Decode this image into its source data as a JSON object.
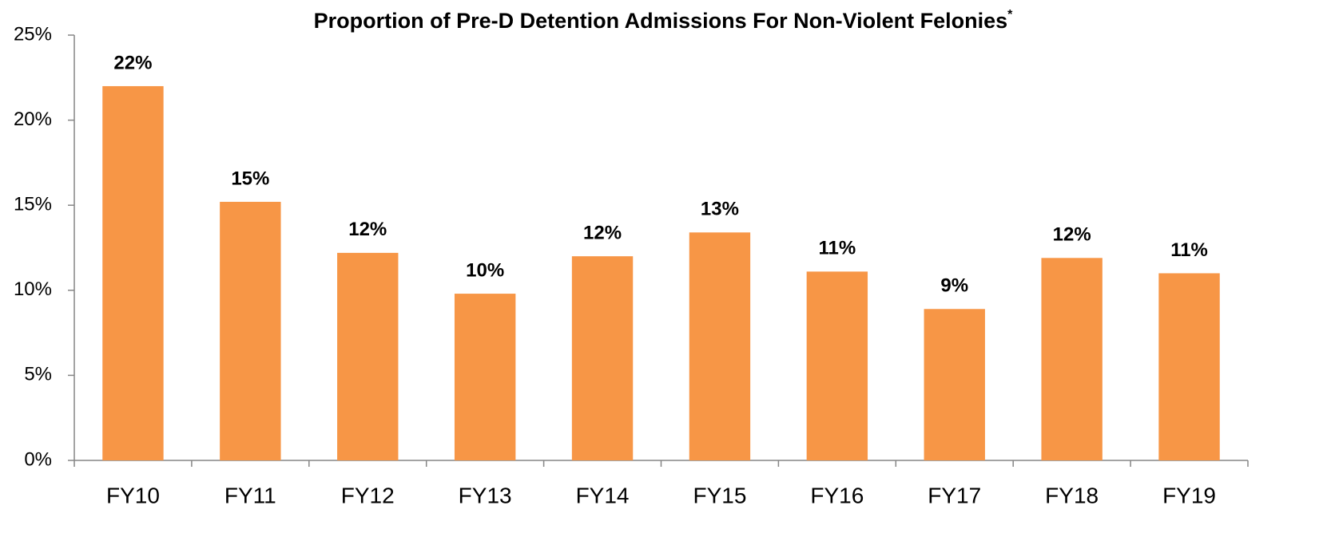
{
  "chart_data": {
    "type": "bar",
    "title": "Proportion of Pre-D Detention Admissions For Non-Violent Felonies",
    "title_marker": "*",
    "categories": [
      "FY10",
      "FY11",
      "FY12",
      "FY13",
      "FY14",
      "FY15",
      "FY16",
      "FY17",
      "FY18",
      "FY19"
    ],
    "values": [
      22.0,
      15.2,
      12.2,
      9.8,
      12.0,
      13.4,
      11.1,
      8.9,
      11.9,
      11.0
    ],
    "value_labels": [
      "22%",
      "15%",
      "12%",
      "10%",
      "12%",
      "13%",
      "11%",
      "9%",
      "12%",
      "11%"
    ],
    "color": "#f79646",
    "ylim": [
      0,
      25
    ],
    "yticks": [
      {
        "value": 0,
        "label": "0%"
      },
      {
        "value": 5,
        "label": "5%"
      },
      {
        "value": 10,
        "label": "10%"
      },
      {
        "value": 15,
        "label": "15%"
      },
      {
        "value": 20,
        "label": "20%"
      },
      {
        "value": 25,
        "label": "25%"
      }
    ],
    "grid": false
  }
}
